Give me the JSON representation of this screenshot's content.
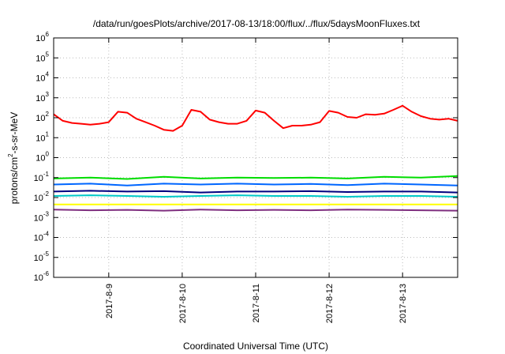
{
  "chart_data": {
    "type": "line",
    "title": "/data/run/goesPlots/archive/2017-08-13/18:00/flux/../flux/5daysMoonFluxes.txt",
    "xlabel": "Coordinated Universal Time (UTC)",
    "ylabel_parts": [
      "protons/cm",
      "2",
      "-s-sr-MeV"
    ],
    "yscale": "log",
    "ylim": [
      -6,
      6
    ],
    "y_ticks": [
      {
        "base": "10",
        "exp": "-6"
      },
      {
        "base": "10",
        "exp": "-5"
      },
      {
        "base": "10",
        "exp": "-4"
      },
      {
        "base": "10",
        "exp": "-3"
      },
      {
        "base": "10",
        "exp": "-2"
      },
      {
        "base": "10",
        "exp": "-1"
      },
      {
        "base": "10",
        "exp": "0"
      },
      {
        "base": "10",
        "exp": "1"
      },
      {
        "base": "10",
        "exp": "2"
      },
      {
        "base": "10",
        "exp": "3"
      },
      {
        "base": "10",
        "exp": "4"
      },
      {
        "base": "10",
        "exp": "5"
      },
      {
        "base": "10",
        "exp": "6"
      }
    ],
    "xlim": [
      "2017-08-08 06:00",
      "2017-08-13 18:00"
    ],
    "x_ticks": [
      "2017-8-9",
      "2017-8-10",
      "2017-8-11",
      "2017-8-12",
      "2017-8-13"
    ],
    "grid": true,
    "series": [
      {
        "color": "#ff0000",
        "x": [
          "2017-08-08 06:00",
          "2017-08-08 09:00",
          "2017-08-08 12:00",
          "2017-08-08 15:00",
          "2017-08-08 18:00",
          "2017-08-08 21:00",
          "2017-08-09 00:00",
          "2017-08-09 03:00",
          "2017-08-09 06:00",
          "2017-08-09 09:00",
          "2017-08-09 12:00",
          "2017-08-09 15:00",
          "2017-08-09 18:00",
          "2017-08-09 21:00",
          "2017-08-10 00:00",
          "2017-08-10 03:00",
          "2017-08-10 06:00",
          "2017-08-10 09:00",
          "2017-08-10 12:00",
          "2017-08-10 15:00",
          "2017-08-10 18:00",
          "2017-08-10 21:00",
          "2017-08-11 00:00",
          "2017-08-11 03:00",
          "2017-08-11 06:00",
          "2017-08-11 09:00",
          "2017-08-11 12:00",
          "2017-08-11 15:00",
          "2017-08-11 18:00",
          "2017-08-11 21:00",
          "2017-08-12 00:00",
          "2017-08-12 03:00",
          "2017-08-12 06:00",
          "2017-08-12 09:00",
          "2017-08-12 12:00",
          "2017-08-12 15:00",
          "2017-08-12 18:00",
          "2017-08-12 21:00",
          "2017-08-13 00:00",
          "2017-08-13 03:00",
          "2017-08-13 06:00",
          "2017-08-13 09:00",
          "2017-08-13 12:00",
          "2017-08-13 15:00",
          "2017-08-13 18:00"
        ],
        "y": [
          150,
          70,
          55,
          50,
          45,
          50,
          60,
          200,
          180,
          90,
          60,
          40,
          25,
          22,
          40,
          250,
          200,
          80,
          60,
          50,
          50,
          70,
          230,
          180,
          70,
          30,
          40,
          40,
          45,
          60,
          220,
          180,
          110,
          100,
          150,
          140,
          160,
          250,
          400,
          200,
          120,
          90,
          80,
          90,
          70
        ]
      },
      {
        "color": "#00dd00",
        "x": [
          "2017-08-08 06:00",
          "2017-08-08 18:00",
          "2017-08-09 06:00",
          "2017-08-09 18:00",
          "2017-08-10 06:00",
          "2017-08-10 18:00",
          "2017-08-11 06:00",
          "2017-08-11 18:00",
          "2017-08-12 06:00",
          "2017-08-12 18:00",
          "2017-08-13 06:00",
          "2017-08-13 18:00"
        ],
        "y": [
          0.09,
          0.1,
          0.085,
          0.11,
          0.09,
          0.1,
          0.095,
          0.1,
          0.09,
          0.11,
          0.1,
          0.12
        ]
      },
      {
        "color": "#0066ff",
        "x": [
          "2017-08-08 06:00",
          "2017-08-08 18:00",
          "2017-08-09 06:00",
          "2017-08-09 18:00",
          "2017-08-10 06:00",
          "2017-08-10 18:00",
          "2017-08-11 06:00",
          "2017-08-11 18:00",
          "2017-08-12 06:00",
          "2017-08-12 18:00",
          "2017-08-13 06:00",
          "2017-08-13 18:00"
        ],
        "y": [
          0.045,
          0.05,
          0.04,
          0.05,
          0.045,
          0.05,
          0.045,
          0.048,
          0.042,
          0.05,
          0.045,
          0.04
        ]
      },
      {
        "color": "#00007f",
        "x": [
          "2017-08-08 06:00",
          "2017-08-08 18:00",
          "2017-08-09 06:00",
          "2017-08-09 18:00",
          "2017-08-10 06:00",
          "2017-08-10 18:00",
          "2017-08-11 06:00",
          "2017-08-11 18:00",
          "2017-08-12 06:00",
          "2017-08-12 18:00",
          "2017-08-13 06:00",
          "2017-08-13 18:00"
        ],
        "y": [
          0.02,
          0.022,
          0.02,
          0.021,
          0.018,
          0.02,
          0.02,
          0.021,
          0.019,
          0.02,
          0.02,
          0.018
        ]
      },
      {
        "color": "#00c8c8",
        "x": [
          "2017-08-08 06:00",
          "2017-08-08 18:00",
          "2017-08-09 06:00",
          "2017-08-09 18:00",
          "2017-08-10 06:00",
          "2017-08-10 18:00",
          "2017-08-11 06:00",
          "2017-08-11 18:00",
          "2017-08-12 06:00",
          "2017-08-12 18:00",
          "2017-08-13 06:00",
          "2017-08-13 18:00"
        ],
        "y": [
          0.012,
          0.013,
          0.012,
          0.011,
          0.012,
          0.013,
          0.012,
          0.012,
          0.011,
          0.012,
          0.012,
          0.011
        ]
      },
      {
        "color": "#ffff00",
        "x": [
          "2017-08-08 06:00",
          "2017-08-08 18:00",
          "2017-08-09 06:00",
          "2017-08-09 18:00",
          "2017-08-10 06:00",
          "2017-08-10 18:00",
          "2017-08-11 06:00",
          "2017-08-11 18:00",
          "2017-08-12 06:00",
          "2017-08-12 18:00",
          "2017-08-13 06:00",
          "2017-08-13 18:00"
        ],
        "y": [
          0.0045,
          0.0045,
          0.0045,
          0.0045,
          0.0045,
          0.0045,
          0.0045,
          0.0045,
          0.0045,
          0.0045,
          0.0045,
          0.0045
        ]
      },
      {
        "color": "#7f2f7f",
        "x": [
          "2017-08-08 06:00",
          "2017-08-08 18:00",
          "2017-08-09 06:00",
          "2017-08-09 18:00",
          "2017-08-10 06:00",
          "2017-08-10 18:00",
          "2017-08-11 06:00",
          "2017-08-11 18:00",
          "2017-08-12 06:00",
          "2017-08-12 18:00",
          "2017-08-13 06:00",
          "2017-08-13 18:00"
        ],
        "y": [
          0.0025,
          0.0023,
          0.0024,
          0.0022,
          0.0025,
          0.0023,
          0.0024,
          0.0023,
          0.0025,
          0.0024,
          0.0023,
          0.0022
        ]
      }
    ]
  }
}
